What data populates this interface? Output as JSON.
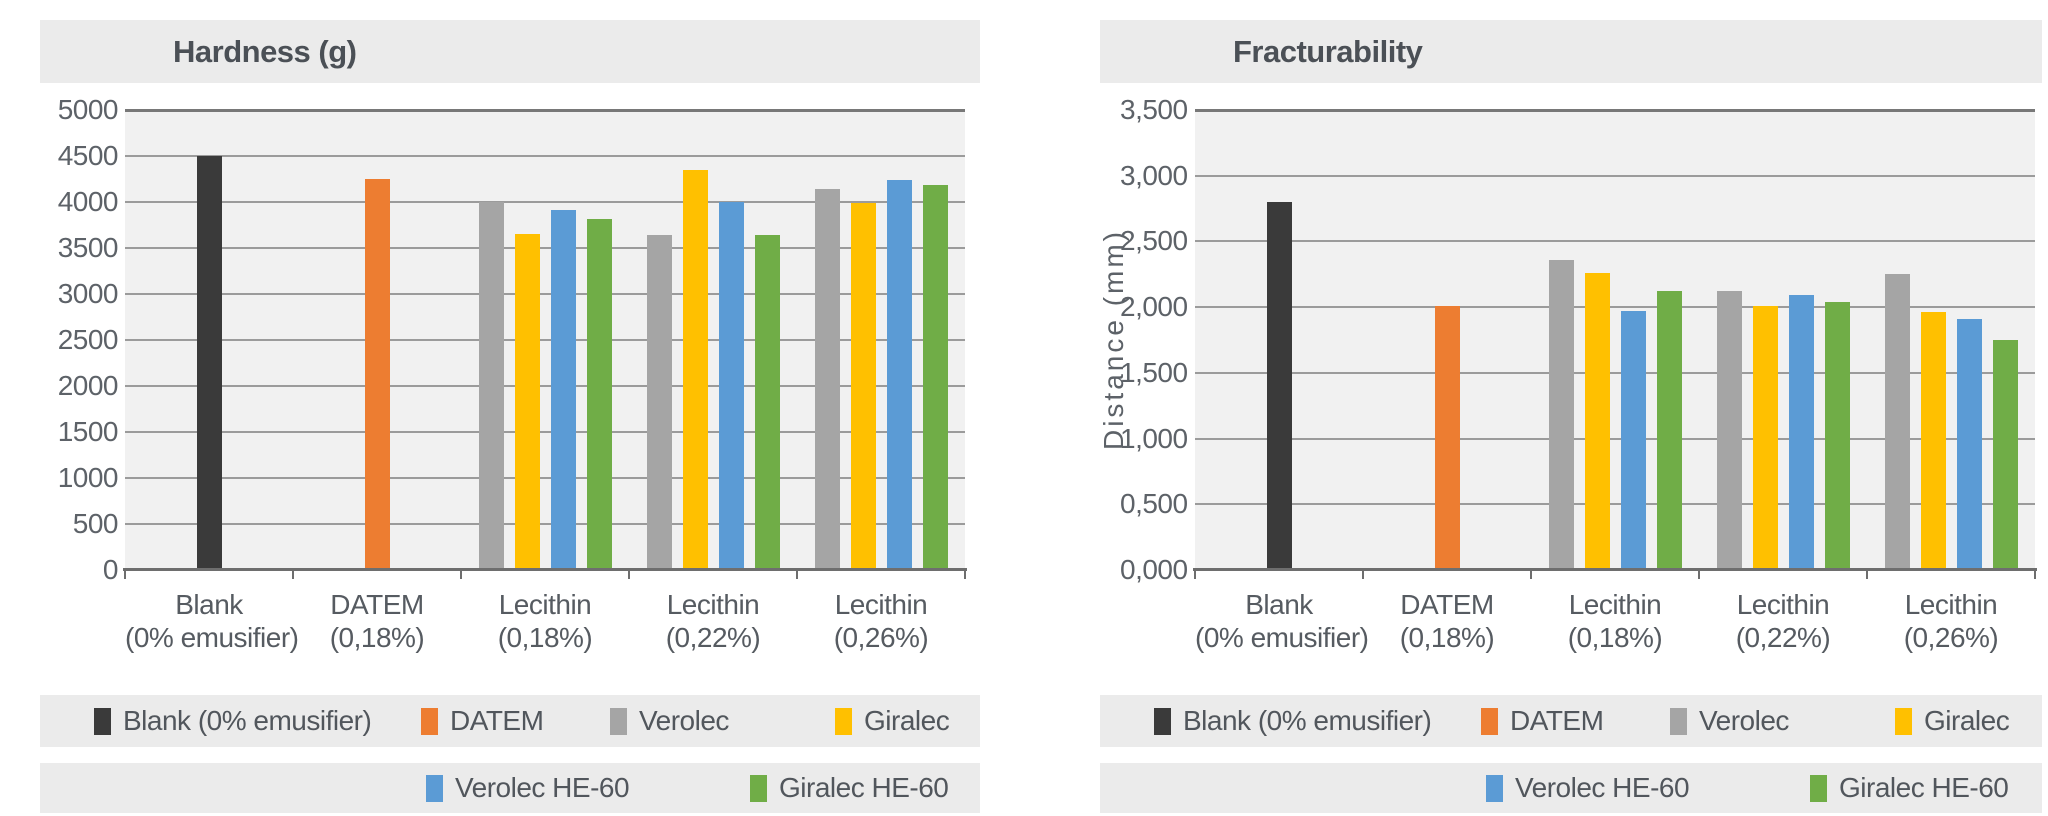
{
  "palette": {
    "blank": "#3A3A3A",
    "datem": "#ED7D31",
    "verolec": "#A5A5A5",
    "giralec": "#FFC000",
    "verolec_he60": "#5B9BD5",
    "giralec_he60": "#70AD47",
    "panel_bg": "#EBEBEB",
    "plot_bg": "#F1F1F1",
    "gridline": "#9B9B9B"
  },
  "chart_data": [
    {
      "type": "bar",
      "title": "Hardness (g)",
      "xlabel": "",
      "ylabel": "",
      "ylim": [
        0,
        5000
      ],
      "grid": true,
      "legend_position": "bottom",
      "ytick_labels": [
        "5000",
        "4500",
        "4000",
        "3500",
        "3000",
        "2500",
        "2000",
        "1500",
        "1000",
        "500",
        "0"
      ],
      "categories": [
        [
          "Blank",
          "(0% emusifier)"
        ],
        [
          "DATEM",
          "(0,18%)"
        ],
        [
          "Lecithin",
          "(0,18%)"
        ],
        [
          "Lecithin",
          "(0,22%)"
        ],
        [
          "Lecithin",
          "(0,26%)"
        ]
      ],
      "series": [
        {
          "name": "Blank (0% emusifier)",
          "key": "blank",
          "color": "#3A3A3A",
          "values": [
            4500,
            null,
            null,
            null,
            null
          ]
        },
        {
          "name": "DATEM",
          "key": "datem",
          "color": "#ED7D31",
          "values": [
            null,
            4250,
            null,
            null,
            null
          ]
        },
        {
          "name": "Verolec",
          "key": "verolec",
          "color": "#A5A5A5",
          "values": [
            null,
            null,
            4000,
            3640,
            4140
          ]
        },
        {
          "name": "Giralec",
          "key": "giralec",
          "color": "#FFC000",
          "values": [
            null,
            null,
            3650,
            4350,
            3990
          ]
        },
        {
          "name": "Verolec HE-60",
          "key": "verolec_he60",
          "color": "#5B9BD5",
          "values": [
            null,
            null,
            3910,
            4000,
            4240
          ]
        },
        {
          "name": "Giralec HE-60",
          "key": "giralec_he60",
          "color": "#70AD47",
          "values": [
            null,
            null,
            3810,
            3640,
            4190
          ]
        }
      ]
    },
    {
      "type": "bar",
      "title": "Fracturability",
      "xlabel": "",
      "ylabel": "Distance (mm)",
      "ylim": [
        0,
        3.5
      ],
      "grid": true,
      "legend_position": "bottom",
      "ytick_labels": [
        "3,500",
        "3,000",
        "2,500",
        "2,000",
        "1,500",
        "1,000",
        "0,500",
        "0,000"
      ],
      "categories": [
        [
          "Blank",
          "(0% emusifier)"
        ],
        [
          "DATEM",
          "(0,18%)"
        ],
        [
          "Lecithin",
          "(0,18%)"
        ],
        [
          "Lecithin",
          "(0,22%)"
        ],
        [
          "Lecithin",
          "(0,26%)"
        ]
      ],
      "series": [
        {
          "name": "Blank (0% emusifier)",
          "key": "blank",
          "color": "#3A3A3A",
          "values": [
            2.8,
            null,
            null,
            null,
            null
          ]
        },
        {
          "name": "DATEM",
          "key": "datem",
          "color": "#ED7D31",
          "values": [
            null,
            2.01,
            null,
            null,
            null
          ]
        },
        {
          "name": "Verolec",
          "key": "verolec",
          "color": "#A5A5A5",
          "values": [
            null,
            null,
            2.36,
            2.12,
            2.25
          ]
        },
        {
          "name": "Giralec",
          "key": "giralec",
          "color": "#FFC000",
          "values": [
            null,
            null,
            2.26,
            2.01,
            1.96
          ]
        },
        {
          "name": "Verolec HE-60",
          "key": "verolec_he60",
          "color": "#5B9BD5",
          "values": [
            null,
            null,
            1.97,
            2.09,
            1.91
          ]
        },
        {
          "name": "Giralec HE-60",
          "key": "giralec_he60",
          "color": "#70AD47",
          "values": [
            null,
            null,
            2.12,
            2.04,
            1.75
          ]
        }
      ]
    }
  ],
  "legend": {
    "rows": [
      [
        {
          "label": "Blank (0% emusifier)",
          "key": "blank",
          "color": "#3A3A3A"
        },
        {
          "label": "DATEM",
          "key": "datem",
          "color": "#ED7D31"
        },
        {
          "label": "Verolec",
          "key": "verolec",
          "color": "#A5A5A5"
        },
        {
          "label": "Giralec",
          "key": "giralec",
          "color": "#FFC000"
        }
      ],
      [
        {
          "label": "Verolec HE-60",
          "key": "verolec_he60",
          "color": "#5B9BD5"
        },
        {
          "label": "Giralec HE-60",
          "key": "giralec_he60",
          "color": "#70AD47"
        }
      ]
    ]
  }
}
